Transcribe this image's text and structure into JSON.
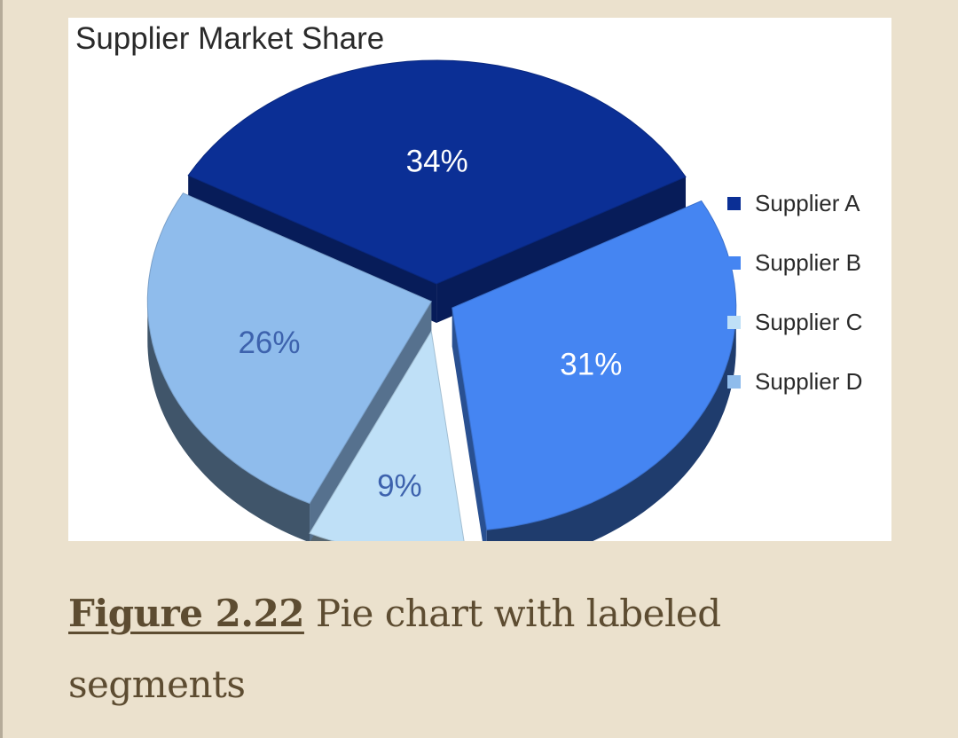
{
  "figure": {
    "label": "Figure 2.22",
    "caption": "Pie chart with labeled segments"
  },
  "chart_data": {
    "type": "pie",
    "title": "Supplier Market Share",
    "style": "3D exploded pie",
    "legend_position": "right",
    "slices": [
      {
        "name": "Supplier A",
        "value": 34,
        "label": "34%",
        "color": "#0b2f95"
      },
      {
        "name": "Supplier B",
        "value": 31,
        "label": "31%",
        "color": "#4585f2"
      },
      {
        "name": "Supplier C",
        "value": 9,
        "label": "9%",
        "color": "#bfe0f7"
      },
      {
        "name": "Supplier D",
        "value": 26,
        "label": "26%",
        "color": "#8fbcec"
      }
    ],
    "legend": [
      {
        "label": "Supplier A",
        "color": "#0b2f95"
      },
      {
        "label": "Supplier B",
        "color": "#4585f2"
      },
      {
        "label": "Supplier C",
        "color": "#bfe0f7"
      },
      {
        "label": "Supplier D",
        "color": "#8fbcec"
      }
    ]
  }
}
